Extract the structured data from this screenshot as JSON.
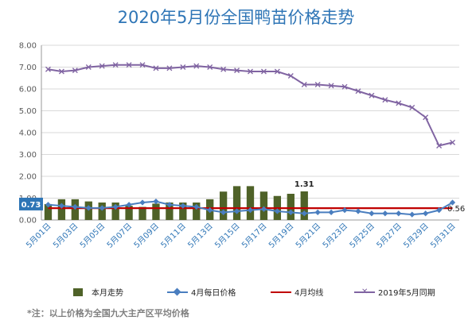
{
  "title": "2020年5月份全国鸭苗价格走势",
  "note": "*注：以上价格为全国九大主产区平均价格",
  "chart_data": {
    "type": "bar",
    "ylim": [
      0,
      8
    ],
    "yticks": [
      "0.00",
      "1.00",
      "2.00",
      "3.00",
      "4.00",
      "5.00",
      "6.00",
      "7.00",
      "8.00"
    ],
    "x_labels": [
      "5月01日",
      "5月03日",
      "5月05日",
      "5月07日",
      "5月09日",
      "5月11日",
      "5月13日",
      "5月15日",
      "5月17日",
      "5月19日",
      "5月21日",
      "5月23日",
      "5月25日",
      "5月27日",
      "5月29日",
      "5月31日"
    ],
    "days": [
      1,
      2,
      3,
      4,
      5,
      6,
      7,
      8,
      9,
      10,
      11,
      12,
      13,
      14,
      15,
      16,
      17,
      18,
      19,
      20,
      21,
      22,
      23,
      24,
      25,
      26,
      27,
      28,
      29,
      30,
      31
    ],
    "legend_position": "bottom",
    "series": [
      {
        "name": "本月走势",
        "type": "bar",
        "color": "#4f6228",
        "values": [
          0.73,
          0.95,
          0.95,
          0.85,
          0.8,
          0.8,
          0.65,
          0.6,
          0.75,
          0.8,
          0.8,
          0.8,
          0.95,
          1.3,
          1.55,
          1.55,
          1.3,
          1.1,
          1.2,
          1.31
        ]
      },
      {
        "name": "4月每日价格",
        "type": "line",
        "color": "#4a7ebf",
        "marker": "diamond",
        "values": [
          0.7,
          0.65,
          0.6,
          0.55,
          0.55,
          0.6,
          0.7,
          0.8,
          0.85,
          0.7,
          0.65,
          0.6,
          0.45,
          0.35,
          0.4,
          0.45,
          0.5,
          0.4,
          0.35,
          0.3,
          0.35,
          0.35,
          0.45,
          0.4,
          0.3,
          0.3,
          0.3,
          0.25,
          0.3,
          0.45,
          0.8
        ]
      },
      {
        "name": "4月均线",
        "type": "line",
        "color": "#c00000",
        "values": [
          0.54,
          0.54,
          0.54,
          0.54,
          0.54,
          0.54,
          0.54,
          0.54,
          0.54,
          0.54,
          0.54,
          0.54,
          0.54,
          0.54,
          0.54,
          0.54,
          0.54,
          0.54,
          0.54,
          0.54,
          0.54,
          0.54,
          0.54,
          0.54,
          0.54,
          0.54,
          0.54,
          0.54,
          0.54,
          0.54,
          0.54
        ]
      },
      {
        "name": "2019年5月同期",
        "type": "line",
        "color": "#8064a2",
        "marker": "x",
        "values": [
          6.9,
          6.8,
          6.85,
          7.0,
          7.05,
          7.1,
          7.1,
          7.1,
          6.95,
          6.95,
          7.0,
          7.05,
          7.0,
          6.9,
          6.85,
          6.8,
          6.8,
          6.8,
          6.6,
          6.2,
          6.2,
          6.15,
          6.1,
          5.9,
          5.7,
          5.5,
          5.35,
          5.15,
          4.7,
          3.4,
          3.55
        ]
      }
    ],
    "annotations": {
      "bar_peak_label": "1.31",
      "start_value_label": "0.73",
      "end_value_label": "0.56"
    }
  }
}
